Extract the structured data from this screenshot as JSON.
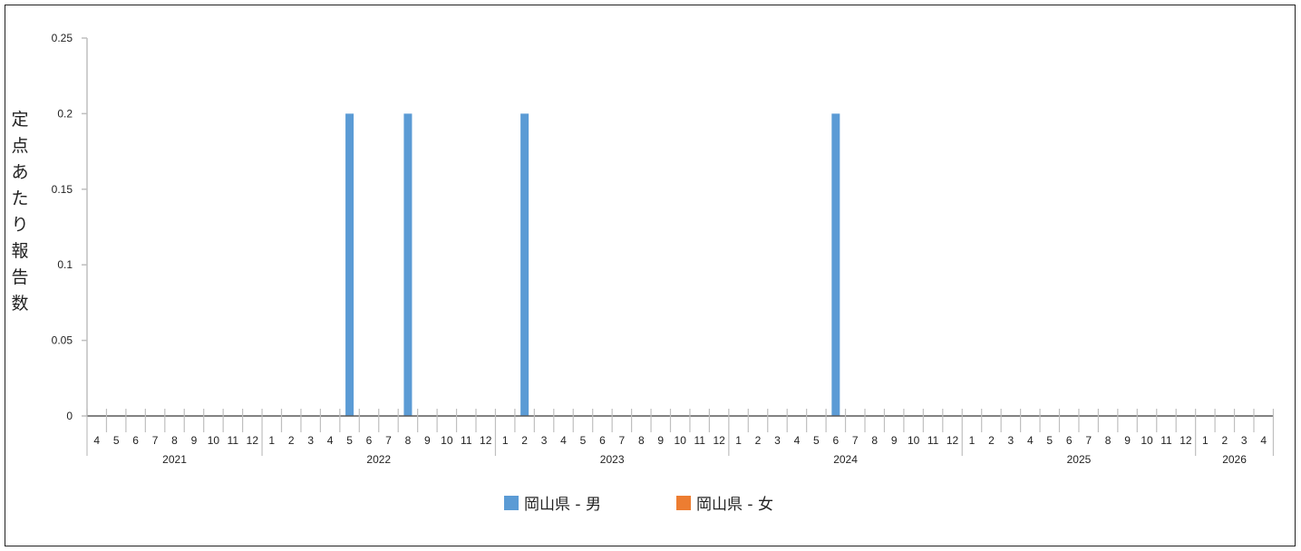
{
  "chart_data": {
    "type": "bar",
    "ylabel": "定点あたり報告数",
    "ylim": [
      0,
      0.25
    ],
    "yticks": [
      "0",
      "0.05",
      "0.1",
      "0.15",
      "0.2",
      "0.25"
    ],
    "grid": false,
    "legend_position": "bottom",
    "x_month_labels": [
      "4",
      "5",
      "6",
      "7",
      "8",
      "9",
      "10",
      "11",
      "12",
      "1",
      "2",
      "3",
      "4",
      "5",
      "6",
      "7",
      "8",
      "9",
      "10",
      "11",
      "12",
      "1",
      "2",
      "3",
      "4",
      "5",
      "6",
      "7",
      "8",
      "9",
      "10",
      "11",
      "12",
      "1",
      "2",
      "3",
      "4",
      "5",
      "6",
      "7",
      "8",
      "9",
      "10",
      "11",
      "12",
      "1",
      "2",
      "3",
      "4",
      "5",
      "6",
      "7",
      "8",
      "9",
      "10",
      "11",
      "12",
      "1",
      "2",
      "3",
      "4"
    ],
    "x_years": [
      {
        "label": "2021",
        "start": 0,
        "count": 9
      },
      {
        "label": "2022",
        "start": 9,
        "count": 12
      },
      {
        "label": "2023",
        "start": 21,
        "count": 12
      },
      {
        "label": "2024",
        "start": 33,
        "count": 12
      },
      {
        "label": "2025",
        "start": 45,
        "count": 12
      },
      {
        "label": "2026",
        "start": 57,
        "count": 4
      }
    ],
    "series": [
      {
        "name": "岡山県 - 男",
        "color": "#5b9bd5",
        "points": [
          {
            "month_index": 13,
            "value": 0.2
          },
          {
            "month_index": 16,
            "value": 0.2
          },
          {
            "month_index": 22,
            "value": 0.2
          },
          {
            "month_index": 38,
            "value": 0.2
          }
        ]
      },
      {
        "name": "岡山県 - 女",
        "color": "#ed7d31",
        "points": []
      }
    ]
  }
}
